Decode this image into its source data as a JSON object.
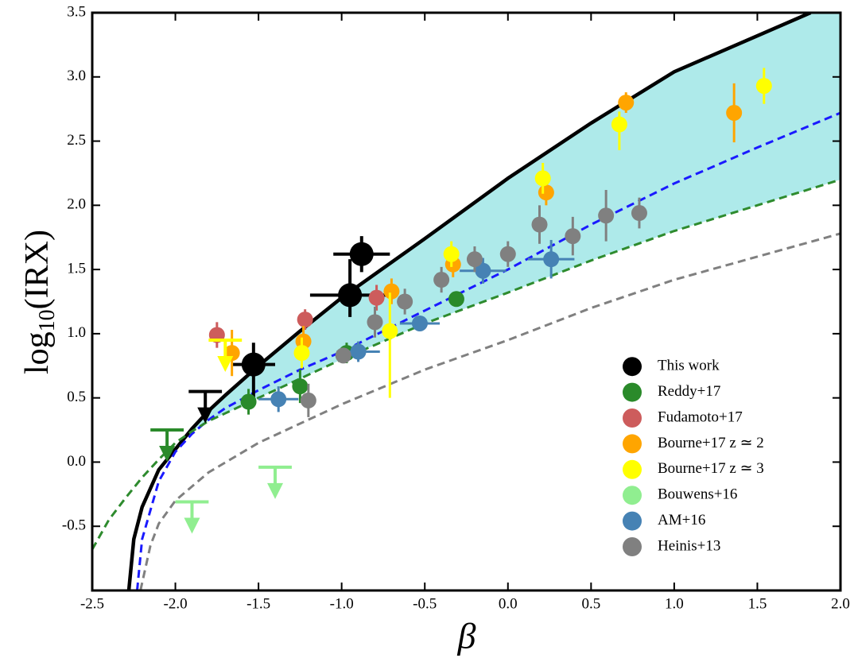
{
  "chart_data": {
    "type": "scatter",
    "x_label": "β",
    "y_label": [
      "log",
      "10",
      "(IRX)"
    ],
    "xlim": [
      -2.5,
      2.0
    ],
    "ylim": [
      -1.0,
      3.5
    ],
    "xticks": [
      -2.5,
      {
        "value": -2,
        "label": "-2.0"
      },
      -1.5,
      {
        "value": -1,
        "label": "-1.0"
      },
      -0.5,
      {
        "value": 0,
        "label": "0.0"
      },
      0.5,
      {
        "value": 1,
        "label": "1.0"
      },
      1.5,
      {
        "value": 2,
        "label": "2.0"
      }
    ],
    "yticks": [
      -0.5,
      {
        "value": 0,
        "label": "0.0"
      },
      0.5,
      {
        "value": 1,
        "label": "1.0"
      },
      1.5,
      {
        "value": 2,
        "label": "2.0"
      },
      2.5,
      {
        "value": 3,
        "label": "3.0"
      },
      3.5
    ],
    "legend": "lower right",
    "shade_color": "#aeeaea",
    "curves": [
      {
        "color": "#000000",
        "dash": false,
        "x": [
          -2.28,
          -2.25,
          -2.2,
          -2.1,
          -2.0,
          -1.9,
          -1.8,
          -1.7,
          -1.5,
          -1.25,
          -1.0,
          -0.5,
          0,
          0.5,
          1.0,
          1.5,
          1.82
        ],
        "y": [
          -1.0,
          -0.6,
          -0.35,
          -0.06,
          0.1,
          0.26,
          0.4,
          0.52,
          0.75,
          1.02,
          1.28,
          1.74,
          2.21,
          2.64,
          3.04,
          3.32,
          3.5
        ]
      },
      {
        "color": "#1a1aff",
        "dash": true,
        "x": [
          -2.23,
          -2.2,
          -2.1,
          -2.0,
          -1.9,
          -1.8,
          -1.7,
          -1.5,
          -1.25,
          -1.0,
          -0.5,
          0,
          0.5,
          1.0,
          1.5,
          2.0
        ],
        "y": [
          -1.0,
          -0.6,
          -0.15,
          0.08,
          0.22,
          0.33,
          0.42,
          0.56,
          0.72,
          0.86,
          1.18,
          1.5,
          1.85,
          2.17,
          2.45,
          2.72
        ]
      },
      {
        "color": "#2e8b2e",
        "dash": true,
        "x": [
          -2.5,
          -2.4,
          -2.3,
          -2.2,
          -2.1,
          -2.0,
          -1.9,
          -1.8,
          -1.7,
          -1.5,
          -1.25,
          -1.0,
          -0.5,
          0,
          0.5,
          1.0,
          1.5,
          2.0
        ],
        "y": [
          -0.68,
          -0.45,
          -0.28,
          -0.12,
          0.02,
          0.15,
          0.24,
          0.32,
          0.38,
          0.5,
          0.65,
          0.8,
          1.08,
          1.32,
          1.57,
          1.8,
          2.0,
          2.2
        ]
      },
      {
        "color": "#808080",
        "dash": true,
        "x": [
          -2.21,
          -2.15,
          -2.1,
          -2.0,
          -1.8,
          -1.5,
          -1.0,
          -0.5,
          0,
          0.5,
          1.0,
          1.5,
          2.0
        ],
        "y": [
          -1.0,
          -0.65,
          -0.48,
          -0.3,
          -0.08,
          0.15,
          0.45,
          0.72,
          0.95,
          1.2,
          1.42,
          1.6,
          1.78
        ]
      }
    ],
    "series": [
      {
        "name": "This work",
        "color": "#000000",
        "x": [
          -1.53,
          -0.95,
          -0.88
        ],
        "values": [
          0.76,
          1.3,
          1.62
        ],
        "xerr": [
          0.13,
          0.24,
          0.17
        ],
        "yerr": [
          [
            0.3,
            0.17
          ],
          [
            0.17,
            0.28
          ],
          0.14
        ],
        "limits": [
          {
            "x": -1.82,
            "value": 0.55,
            "xerr": 0.1
          }
        ]
      },
      {
        "name": "Reddy+17",
        "color": "#2a8a2a",
        "x": [
          -1.56,
          -1.25,
          -0.97,
          -0.31
        ],
        "values": [
          0.47,
          0.59,
          0.85,
          1.27
        ],
        "xerr": [
          null,
          null,
          null,
          null
        ],
        "yerr": [
          0.1,
          0.13,
          0.08,
          0.05
        ],
        "limits": [
          {
            "x": -2.05,
            "value": 0.25,
            "xerr": 0.1
          }
        ]
      },
      {
        "name": "Fudamoto+17",
        "color": "#cd5c5c",
        "x": [
          -1.75,
          -1.22,
          -0.79
        ],
        "values": [
          0.99,
          1.11,
          1.28
        ],
        "xerr": [
          null,
          null,
          null
        ],
        "yerr": [
          0.1,
          0.08,
          0.1
        ],
        "limits": []
      },
      {
        "name": "Bourne+17 z ≃ 2",
        "color": "#ffa500",
        "x": [
          -1.66,
          -1.23,
          -0.7,
          -0.33,
          0.23,
          0.71,
          1.36
        ],
        "values": [
          0.85,
          0.94,
          1.33,
          1.54,
          2.1,
          2.8,
          2.72
        ],
        "xerr": [
          null,
          null,
          null,
          null,
          null,
          null,
          null
        ],
        "yerr": [
          0.18,
          0.12,
          0.1,
          0.1,
          0.1,
          0.08,
          0.23
        ],
        "limits": []
      },
      {
        "name": "Bourne+17 z ≃ 3",
        "color": "#ffff00",
        "x": [
          -1.24,
          -0.71,
          -0.34,
          0.21,
          0.67,
          1.54
        ],
        "values": [
          0.85,
          1.02,
          1.62,
          2.21,
          2.63,
          2.93
        ],
        "xerr": [
          null,
          null,
          null,
          null,
          null,
          null
        ],
        "yerr": [
          0.12,
          [
            0.52,
            0.3
          ],
          0.1,
          0.12,
          [
            0.2,
            0.1
          ],
          0.14
        ],
        "limits": [
          {
            "x": -1.7,
            "value": 0.95,
            "xerr": 0.1
          }
        ]
      },
      {
        "name": "Bouwens+16",
        "color": "#90ee90",
        "x": [],
        "values": [],
        "xerr": [],
        "yerr": [],
        "limits": [
          {
            "x": -1.9,
            "value": -0.31,
            "xerr": 0.1
          },
          {
            "x": -1.4,
            "value": -0.04,
            "xerr": 0.1
          }
        ]
      },
      {
        "name": "AM+16",
        "color": "#4682b4",
        "x": [
          -1.38,
          -0.9,
          -0.53,
          -0.15,
          0.26
        ],
        "values": [
          0.49,
          0.86,
          1.08,
          1.49,
          1.58
        ],
        "xerr": [
          0.12,
          0.13,
          0.12,
          0.14,
          0.14
        ],
        "yerr": [
          0.1,
          0.08,
          0.05,
          0.1,
          0.15
        ],
        "limits": []
      },
      {
        "name": "Heinis+13",
        "color": "#808080",
        "x": [
          -1.2,
          -0.99,
          -0.8,
          -0.62,
          -0.4,
          -0.2,
          0.0,
          0.19,
          0.39,
          0.59,
          0.79
        ],
        "values": [
          0.48,
          0.83,
          1.09,
          1.25,
          1.42,
          1.58,
          1.62,
          1.85,
          1.76,
          1.92,
          1.94
        ],
        "xerr": [
          null,
          null,
          null,
          null,
          null,
          null,
          null,
          null,
          null,
          null,
          null
        ],
        "yerr": [
          0.13,
          0.05,
          0.12,
          0.1,
          0.1,
          0.1,
          0.1,
          0.15,
          0.15,
          0.2,
          0.12
        ],
        "limits": []
      }
    ]
  }
}
